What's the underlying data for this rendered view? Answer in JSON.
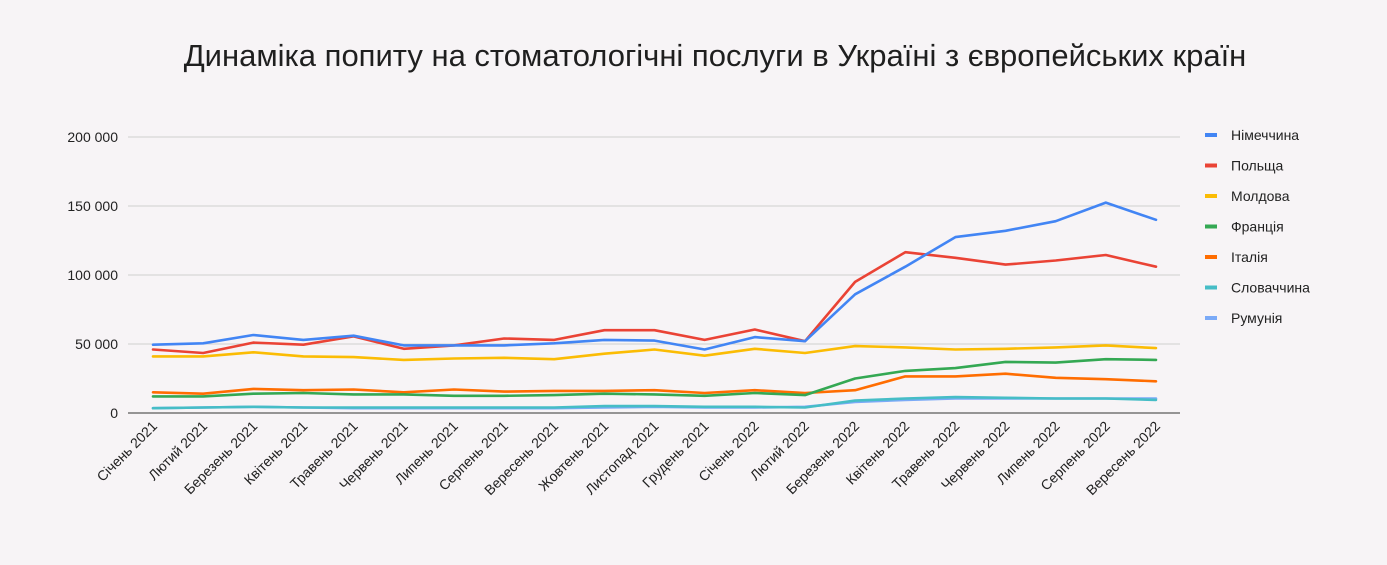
{
  "chart_data": {
    "type": "line",
    "title": "Динаміка попиту на стоматологічні послуги в Україні з європейських країн",
    "xlabel": "",
    "ylabel": "",
    "ylim": [
      0,
      200000
    ],
    "y_ticks": [
      {
        "value": 0,
        "label": "0"
      },
      {
        "value": 50000,
        "label": "50 000"
      },
      {
        "value": 100000,
        "label": "100 000"
      },
      {
        "value": 150000,
        "label": "150 000"
      },
      {
        "value": 200000,
        "label": "200 000"
      }
    ],
    "grid": true,
    "legend_position": "right",
    "categories": [
      "Січень 2021",
      "Лютий 2021",
      "Березень 2021",
      "Квітень 2021",
      "Травень 2021",
      "Червень 2021",
      "Липень 2021",
      "Серпень 2021",
      "Вересень 2021",
      "Жовтень 2021",
      "Листопад 2021",
      "Грудень 2021",
      "Січень 2022",
      "Лютий 2022",
      "Березень 2022",
      "Квітень 2022",
      "Травень 2022",
      "Червень 2022",
      "Липень 2022",
      "Серпень 2022",
      "Вересень 2022"
    ],
    "series": [
      {
        "name": "Німеччина",
        "color": "#4285f4",
        "values": [
          49500,
          50500,
          56500,
          53000,
          56000,
          49000,
          49000,
          49000,
          50500,
          53000,
          52500,
          46000,
          55000,
          52000,
          86000,
          106000,
          127500,
          132000,
          139000,
          152500,
          140000
        ]
      },
      {
        "name": "Польща",
        "color": "#ea4335",
        "values": [
          46000,
          43500,
          51000,
          49500,
          55500,
          46500,
          49000,
          54000,
          53000,
          60000,
          60000,
          53000,
          60500,
          52000,
          95000,
          116500,
          112500,
          107500,
          110500,
          114500,
          106000
        ]
      },
      {
        "name": "Молдова",
        "color": "#fbbc04",
        "values": [
          41000,
          41000,
          44000,
          41000,
          40500,
          38500,
          39500,
          40000,
          39000,
          43000,
          46000,
          41500,
          46500,
          43500,
          48500,
          47500,
          46000,
          46500,
          47500,
          49000,
          47000
        ]
      },
      {
        "name": "Франція",
        "color": "#34a853",
        "values": [
          12000,
          12000,
          14000,
          14500,
          13500,
          13500,
          12500,
          12500,
          13000,
          14000,
          13500,
          12500,
          14500,
          13000,
          25000,
          30500,
          32500,
          37000,
          36500,
          39000,
          38500
        ]
      },
      {
        "name": "Італія",
        "color": "#ff6d01",
        "values": [
          15000,
          14000,
          17500,
          16500,
          17000,
          15000,
          17000,
          15500,
          16000,
          16000,
          16500,
          14500,
          16500,
          14500,
          16500,
          26500,
          26500,
          28500,
          25500,
          24500,
          23000
        ]
      },
      {
        "name": "Словаччина",
        "color": "#46bdc6",
        "values": [
          3500,
          4000,
          4500,
          4000,
          4000,
          4000,
          4000,
          4000,
          4000,
          5000,
          5000,
          4500,
          4500,
          4000,
          9000,
          10500,
          11500,
          11000,
          10500,
          10500,
          9500
        ]
      },
      {
        "name": "Румунія",
        "color": "#7baaf7",
        "values": [
          3500,
          4000,
          4500,
          4000,
          3500,
          3500,
          3500,
          3500,
          3500,
          4000,
          4500,
          4000,
          4000,
          4500,
          8000,
          9500,
          10500,
          10500,
          10500,
          10500,
          10500
        ]
      }
    ]
  }
}
